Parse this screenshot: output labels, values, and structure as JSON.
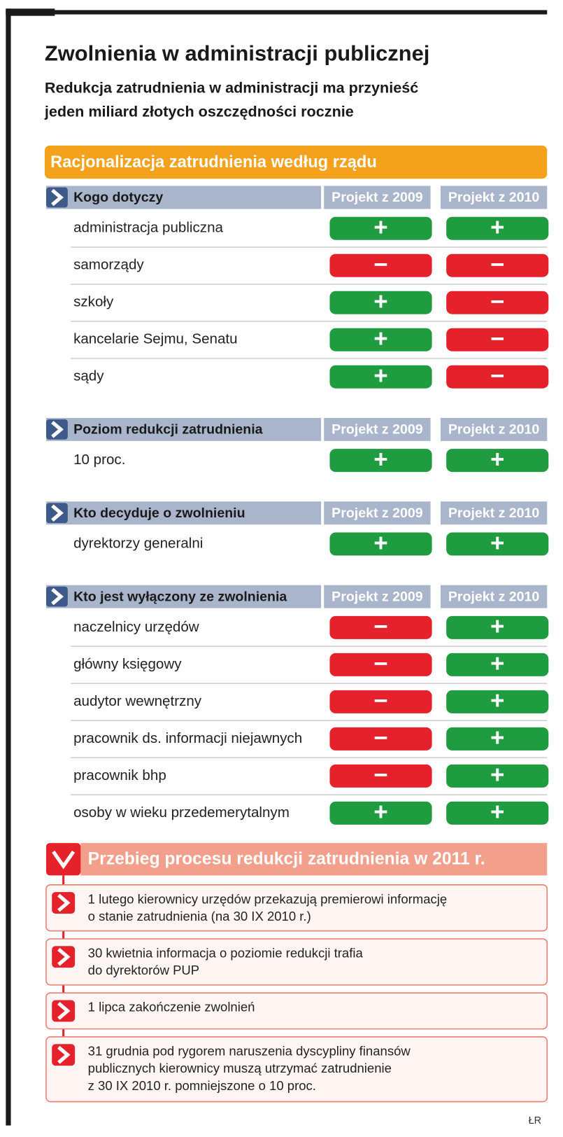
{
  "header": {
    "title": "Zwolnienia w administracji publicznej",
    "subtitle": [
      "Redukcja zatrudnienia w administracji ma przynieść",
      "jeden miliard złotych oszczędności rocznie"
    ]
  },
  "banner": "Racjonalizacja zatrudnienia według rządu",
  "tables": [
    {
      "heading": "Kogo dotyczy",
      "columns": [
        "Projekt z 2009",
        "Projekt z 2010"
      ],
      "rows": [
        {
          "label": "administracja publiczna",
          "values": [
            "+",
            "+"
          ]
        },
        {
          "label": "samorządy",
          "values": [
            "−",
            "−"
          ]
        },
        {
          "label": "szkoły",
          "values": [
            "+",
            "−"
          ]
        },
        {
          "label": "kancelarie Sejmu, Senatu",
          "values": [
            "+",
            "−"
          ]
        },
        {
          "label": "sądy",
          "values": [
            "+",
            "−"
          ]
        }
      ]
    },
    {
      "heading": "Poziom redukcji zatrudnienia",
      "columns": [
        "Projekt z 2009",
        "Projekt z 2010"
      ],
      "rows": [
        {
          "label": "10 proc.",
          "values": [
            "+",
            "+"
          ]
        }
      ]
    },
    {
      "heading": "Kto decyduje o zwolnieniu",
      "columns": [
        "Projekt z 2009",
        "Projekt z 2010"
      ],
      "rows": [
        {
          "label": "dyrektorzy generalni",
          "values": [
            "+",
            "+"
          ]
        }
      ]
    },
    {
      "heading": "Kto jest wyłączony ze zwolnienia",
      "columns": [
        "Projekt z 2009",
        "Projekt z 2010"
      ],
      "rows": [
        {
          "label": "naczelnicy urzędów",
          "values": [
            "−",
            "+"
          ]
        },
        {
          "label": "główny księgowy",
          "values": [
            "−",
            "+"
          ]
        },
        {
          "label": "audytor wewnętrzny",
          "values": [
            "−",
            "+"
          ]
        },
        {
          "label": "pracownik ds. informacji niejawnych",
          "values": [
            "−",
            "+"
          ]
        },
        {
          "label": "pracownik bhp",
          "values": [
            "−",
            "+"
          ]
        },
        {
          "label": "osoby w wieku przedemerytalnym",
          "values": [
            "+",
            "+"
          ]
        }
      ]
    }
  ],
  "timeline": {
    "title": "Przebieg procesu redukcji zatrudnienia w 2011 r.",
    "items": [
      [
        "1 lutego kierownicy urzędów przekazują premierowi informację",
        "o stanie zatrudnienia (na 30 IX 2010 r.)"
      ],
      [
        "30 kwietnia informacja o poziomie redukcji trafia",
        "do dyrektorów PUP"
      ],
      [
        "1 lipca  zakończenie zwolnień"
      ],
      [
        "31 grudnia pod rygorem naruszenia dyscypliny finansów",
        "publicznych kierownicy muszą utrzymać zatrudnienie",
        "z 30 IX 2010 r. pomniejszone o 10 proc."
      ]
    ]
  },
  "credit": "ŁR"
}
